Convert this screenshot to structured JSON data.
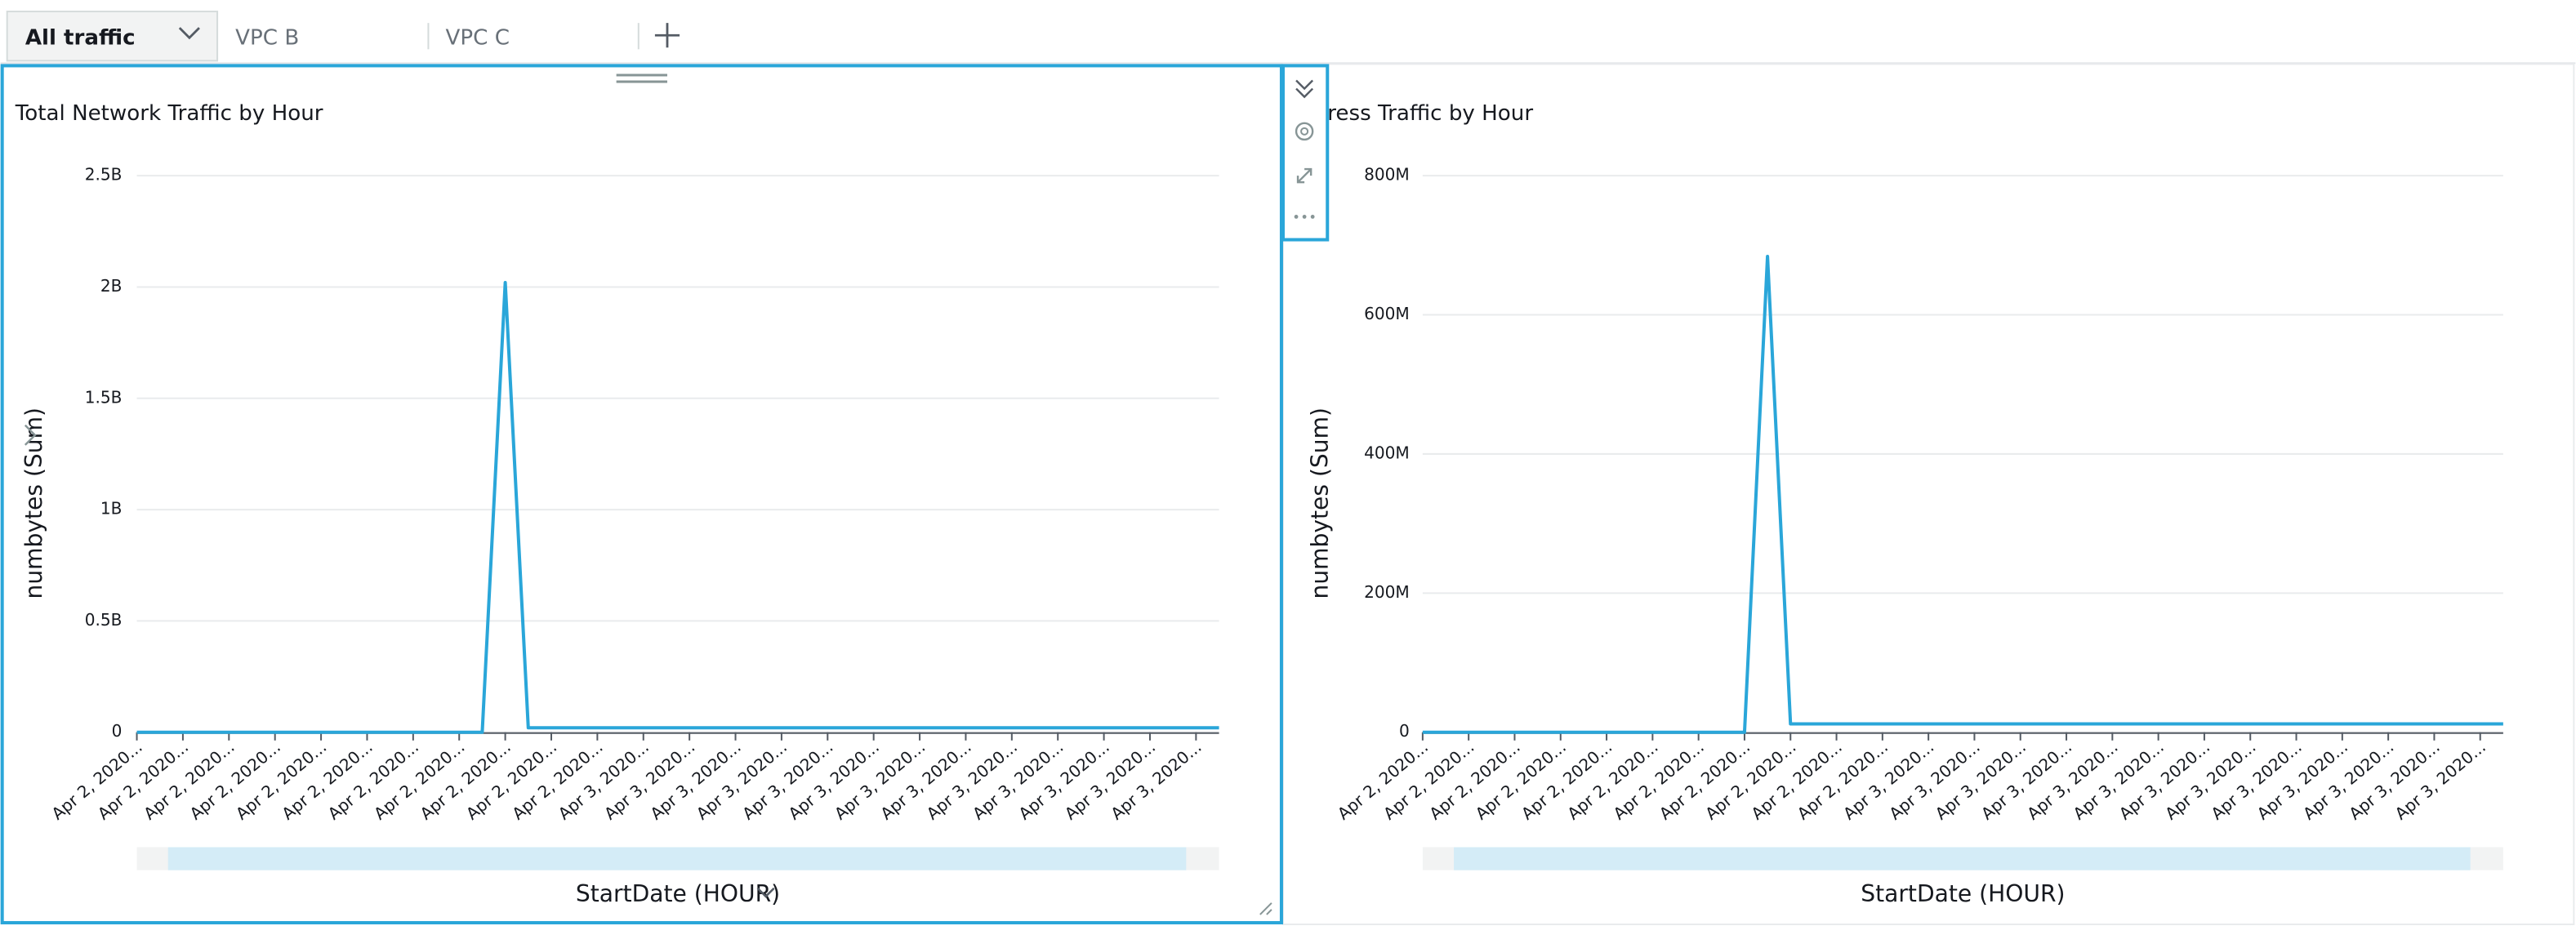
{
  "tabs": [
    "All traffic",
    "VPC B",
    "VPC C"
  ],
  "chart_data": [
    {
      "type": "line",
      "title": "Total Network Traffic by Hour",
      "y_label": "numbytes (Sum)",
      "x_label": "StartDate (HOUR)",
      "color": "#2aa6d9",
      "grid": true,
      "categories": [
        "Apr 2, 2020...",
        null,
        "Apr 2, 2020...",
        null,
        "Apr 2, 2020...",
        null,
        "Apr 2, 2020...",
        null,
        "Apr 2, 2020...",
        null,
        "Apr 2, 2020...",
        null,
        "Apr 2, 2020...",
        null,
        "Apr 2, 2020...",
        null,
        "Apr 2, 2020...",
        null,
        "Apr 2, 2020...",
        null,
        "Apr 2, 2020...",
        null,
        "Apr 3, 2020...",
        null,
        "Apr 3, 2020...",
        null,
        "Apr 3, 2020...",
        null,
        "Apr 3, 2020...",
        null,
        "Apr 3, 2020...",
        null,
        "Apr 3, 2020...",
        null,
        "Apr 3, 2020...",
        null,
        "Apr 3, 2020...",
        null,
        "Apr 3, 2020...",
        null,
        "Apr 3, 2020...",
        null,
        "Apr 3, 2020...",
        null,
        "Apr 3, 2020...",
        null,
        "Apr 3, 2020...",
        null
      ],
      "values": [
        0,
        0,
        0,
        0,
        0,
        0,
        0,
        0,
        0,
        0,
        0,
        0,
        0,
        0,
        0,
        0,
        2020000000,
        20000000,
        20000000,
        20000000,
        20000000,
        20000000,
        20000000,
        20000000,
        20000000,
        20000000,
        20000000,
        20000000,
        20000000,
        20000000,
        20000000,
        20000000,
        20000000,
        20000000,
        20000000,
        20000000,
        20000000,
        20000000,
        20000000,
        20000000,
        20000000,
        20000000,
        20000000,
        20000000,
        20000000,
        20000000,
        20000000,
        20000000
      ],
      "ylim": [
        0,
        2500000000
      ],
      "yticks": [
        0,
        {
          "value": 500000000,
          "label": "0.5B"
        },
        {
          "value": 1000000000,
          "label": "1B"
        },
        {
          "value": 1500000000,
          "label": "1.5B"
        },
        {
          "value": 2000000000,
          "label": "2B"
        },
        {
          "value": 2500000000,
          "label": "2.5B"
        }
      ]
    },
    {
      "type": "line",
      "title": "ress Traffic by Hour",
      "y_label": "numbytes (Sum)",
      "x_label": "StartDate (HOUR)",
      "color": "#2aa6d9",
      "grid": true,
      "categories": [
        "Apr 2, 2020...",
        null,
        "Apr 2, 2020...",
        null,
        "Apr 2, 2020...",
        null,
        "Apr 2, 2020...",
        null,
        "Apr 2, 2020...",
        null,
        "Apr 2, 2020...",
        null,
        "Apr 2, 2020...",
        null,
        "Apr 2, 2020...",
        null,
        "Apr 2, 2020...",
        null,
        "Apr 2, 2020...",
        null,
        "Apr 2, 2020...",
        null,
        "Apr 3, 2020...",
        null,
        "Apr 3, 2020...",
        null,
        "Apr 3, 2020...",
        null,
        "Apr 3, 2020...",
        null,
        "Apr 3, 2020...",
        null,
        "Apr 3, 2020...",
        null,
        "Apr 3, 2020...",
        null,
        "Apr 3, 2020...",
        null,
        "Apr 3, 2020...",
        null,
        "Apr 3, 2020...",
        null,
        "Apr 3, 2020...",
        null,
        "Apr 3, 2020...",
        null,
        "Apr 3, 2020...",
        null
      ],
      "values": [
        0,
        0,
        0,
        0,
        0,
        0,
        0,
        0,
        0,
        0,
        0,
        0,
        0,
        0,
        0,
        684000000,
        12000000,
        12000000,
        12000000,
        12000000,
        12000000,
        12000000,
        12000000,
        12000000,
        12000000,
        12000000,
        12000000,
        12000000,
        12000000,
        12000000,
        12000000,
        12000000,
        12000000,
        12000000,
        12000000,
        12000000,
        12000000,
        12000000,
        12000000,
        12000000,
        12000000,
        12000000,
        12000000,
        12000000,
        12000000,
        12000000,
        12000000,
        12000000
      ],
      "ylim": [
        0,
        800000000
      ],
      "yticks": [
        0,
        {
          "value": 200000000,
          "label": "200M"
        },
        {
          "value": 400000000,
          "label": "400M"
        },
        {
          "value": 600000000,
          "label": "600M"
        },
        {
          "value": 800000000,
          "label": "800M"
        }
      ]
    }
  ]
}
